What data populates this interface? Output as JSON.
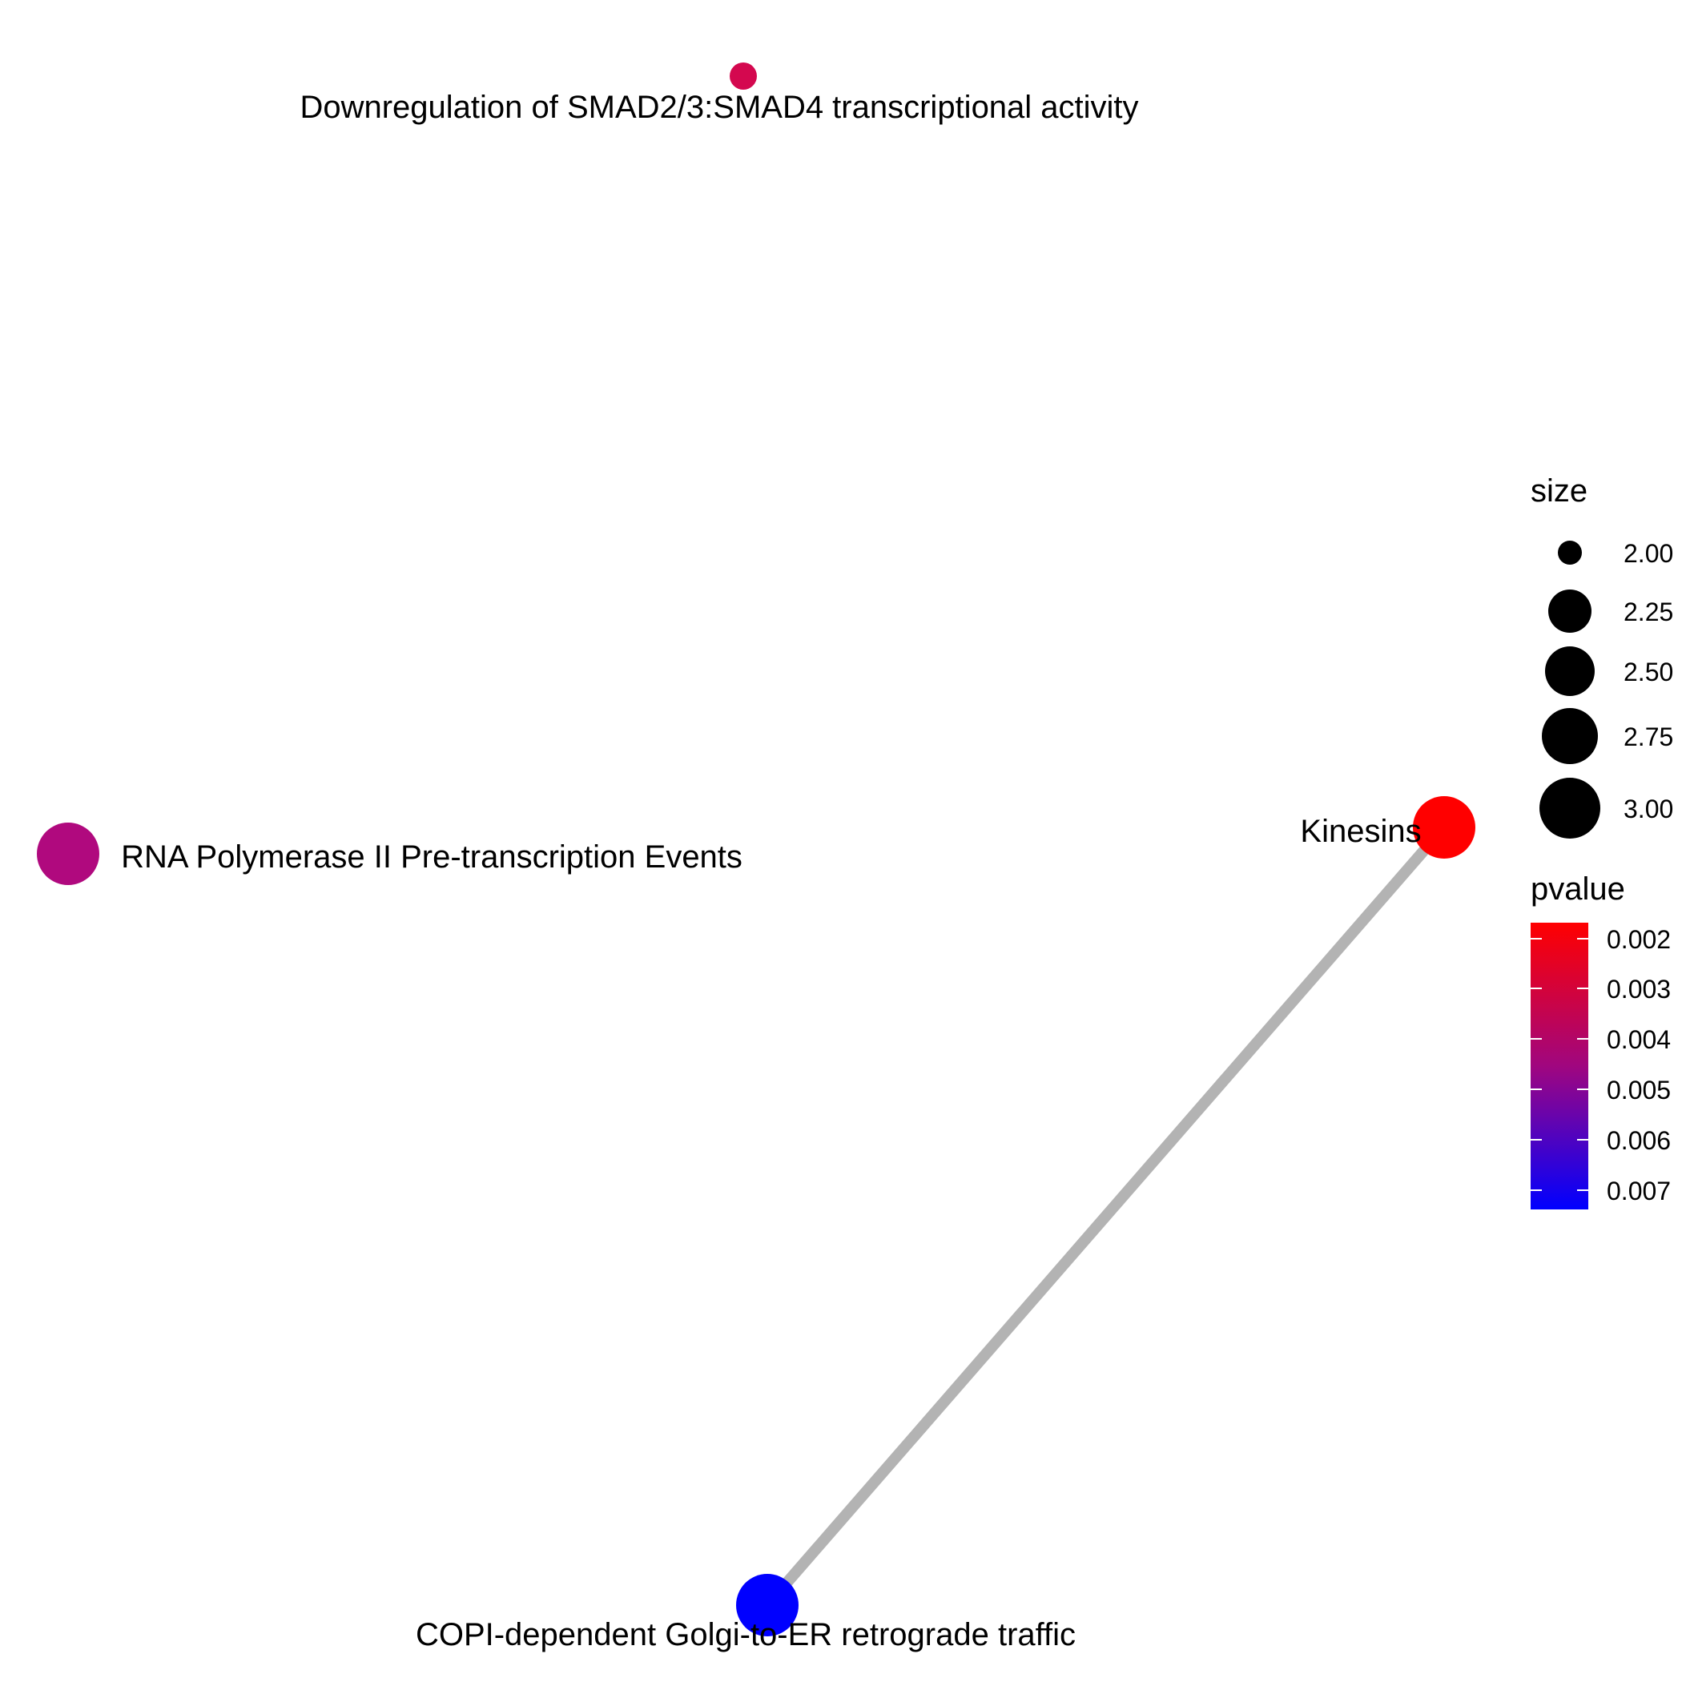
{
  "network": {
    "nodes": [
      {
        "id": "smad",
        "label": "Downregulation of SMAD2/3:SMAD4 transcriptional activity",
        "size": 2.0,
        "pvalue": 0.0042
      },
      {
        "id": "rna",
        "label": "RNA Polymerase II Pre-transcription Events",
        "size": 3.0,
        "pvalue": 0.0051
      },
      {
        "id": "kinesins",
        "label": "Kinesins",
        "size": 3.0,
        "pvalue": 0.0018
      },
      {
        "id": "copi",
        "label": "COPI-dependent Golgi-to-ER retrograde traffic",
        "size": 3.0,
        "pvalue": 0.0075
      }
    ],
    "edges": [
      {
        "from": "kinesins",
        "to": "copi"
      }
    ],
    "edge_color": "#B3B3B3"
  },
  "legend": {
    "size": {
      "title": "size",
      "values": [
        2.0,
        2.25,
        2.5,
        2.75,
        3.0
      ],
      "labels": [
        "2.00",
        "2.25",
        "2.50",
        "2.75",
        "3.00"
      ]
    },
    "pvalue": {
      "title": "pvalue",
      "ticks": [
        "0.002",
        "0.003",
        "0.004",
        "0.005",
        "0.006",
        "0.007"
      ],
      "colors": {
        "low": "#FF0000",
        "mid": "#A0067F",
        "high": "#0000FF"
      }
    }
  }
}
